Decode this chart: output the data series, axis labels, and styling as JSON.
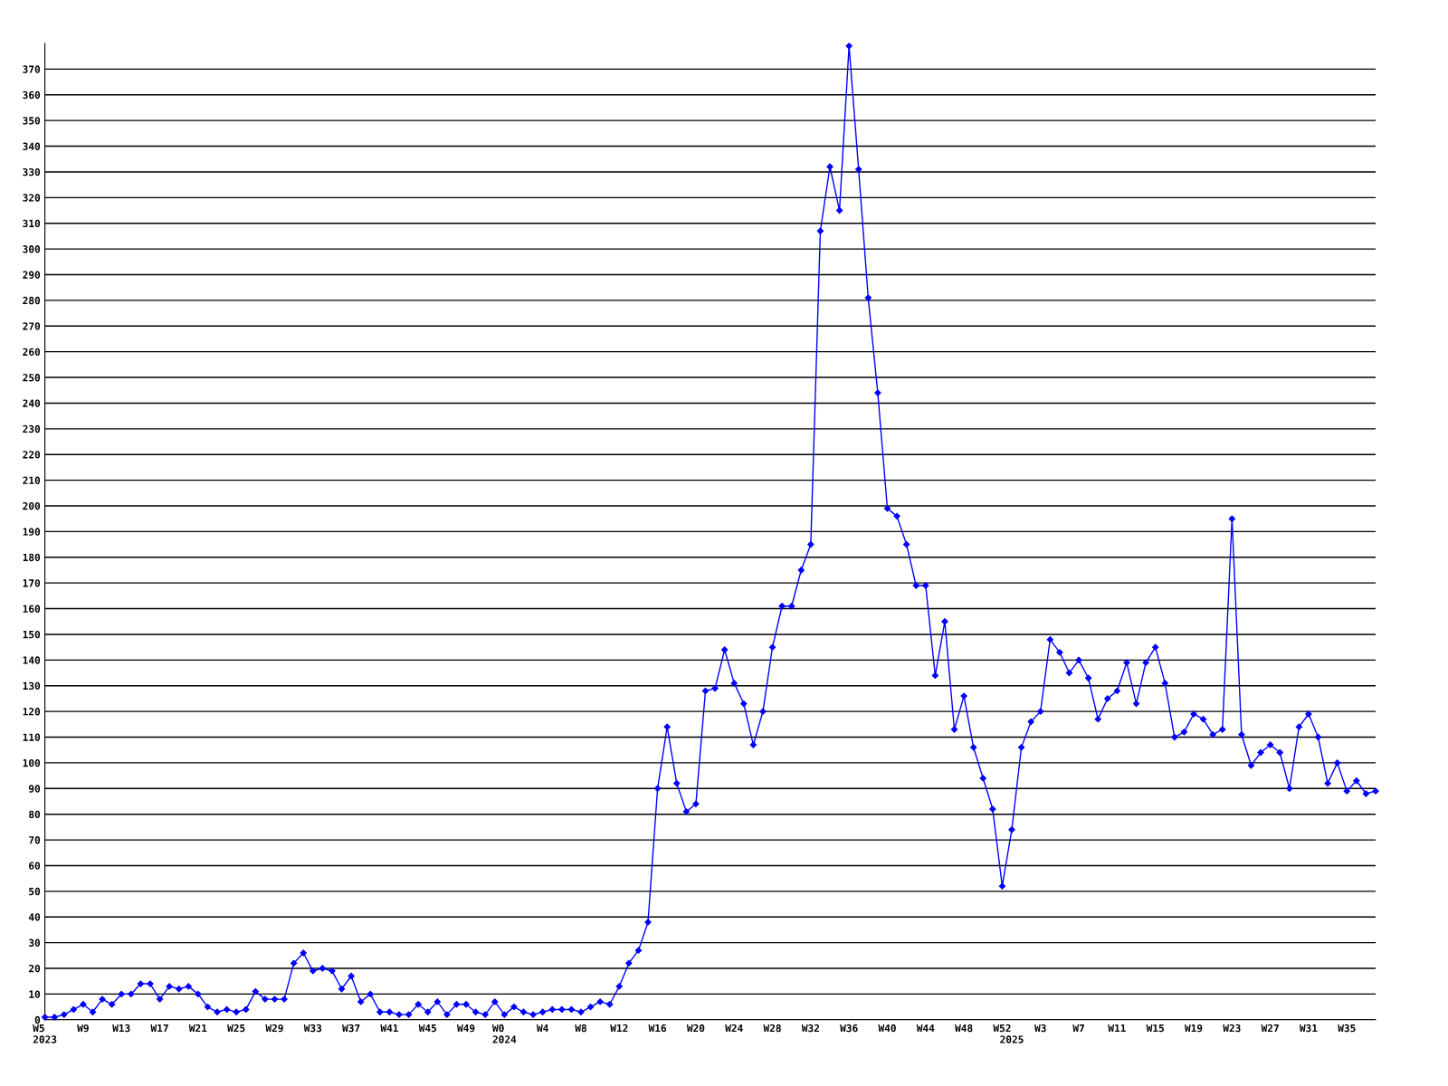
{
  "chart_data": {
    "type": "line",
    "categories": [
      "W5\n2023",
      null,
      null,
      null,
      "W9",
      null,
      null,
      null,
      "W13",
      null,
      null,
      null,
      "W17",
      null,
      null,
      null,
      "W21",
      null,
      null,
      null,
      "W25",
      null,
      null,
      null,
      "W29",
      null,
      null,
      null,
      "W33",
      null,
      null,
      null,
      "W37",
      null,
      null,
      null,
      "W41",
      null,
      null,
      null,
      "W45",
      null,
      null,
      null,
      "W49",
      null,
      null,
      null,
      "W0\n2024",
      null,
      null,
      null,
      "W4",
      null,
      null,
      null,
      "W8",
      null,
      null,
      null,
      "W12",
      null,
      null,
      null,
      "W16",
      null,
      null,
      null,
      "W20",
      null,
      null,
      null,
      "W24",
      null,
      null,
      null,
      "W28",
      null,
      null,
      null,
      "W32",
      null,
      null,
      null,
      "W36",
      null,
      null,
      null,
      "W40",
      null,
      null,
      null,
      "W44",
      null,
      null,
      null,
      "W48",
      null,
      null,
      null,
      "W52",
      "\n2025",
      null,
      null,
      "W3",
      null,
      null,
      null,
      "W7",
      null,
      null,
      null,
      "W11",
      null,
      null,
      null,
      "W15",
      null,
      null,
      null,
      "W19",
      null,
      null,
      null,
      "W23",
      null,
      null,
      null,
      "W27",
      null,
      null,
      null,
      "W31",
      null,
      null,
      null,
      "W35",
      null,
      null,
      null
    ],
    "series": [
      {
        "color": "#0000ff",
        "values": [
          1,
          1,
          2,
          4,
          6,
          3,
          8,
          6,
          10,
          10,
          14,
          14,
          8,
          13,
          12,
          13,
          10,
          5,
          3,
          4,
          3,
          4,
          11,
          8,
          8,
          8,
          22,
          26,
          19,
          20,
          19,
          12,
          17,
          7,
          10,
          3,
          3,
          2,
          2,
          6,
          3,
          7,
          2,
          6,
          6,
          3,
          2,
          7,
          2,
          5,
          3,
          2,
          3,
          4,
          4,
          4,
          3,
          5,
          7,
          6,
          13,
          22,
          27,
          38,
          90,
          114,
          92,
          81,
          84,
          128,
          129,
          144,
          131,
          123,
          107,
          120,
          145,
          161,
          161,
          175,
          185,
          307,
          332,
          315,
          379,
          331,
          281,
          244,
          199,
          196,
          185,
          169,
          169,
          134,
          155,
          113,
          126,
          106,
          94,
          82,
          52,
          74,
          106,
          116,
          120,
          148,
          143,
          135,
          140,
          133,
          117,
          125,
          128,
          139,
          123,
          139,
          145,
          131,
          110,
          112,
          119,
          117,
          111,
          113,
          195,
          111,
          99,
          104,
          107,
          104,
          90,
          114,
          119,
          110,
          92,
          100,
          89,
          93,
          88,
          89
        ]
      }
    ],
    "ylim": [
      0,
      380
    ],
    "yticks": [
      0,
      10,
      20,
      30,
      40,
      50,
      60,
      70,
      80,
      90,
      100,
      110,
      120,
      130,
      140,
      150,
      160,
      170,
      180,
      190,
      200,
      210,
      220,
      230,
      240,
      250,
      260,
      270,
      280,
      290,
      300,
      310,
      320,
      330,
      340,
      350,
      360,
      370
    ],
    "grid": "y",
    "marker": "diamond",
    "line_style": "solid",
    "legend": false
  }
}
